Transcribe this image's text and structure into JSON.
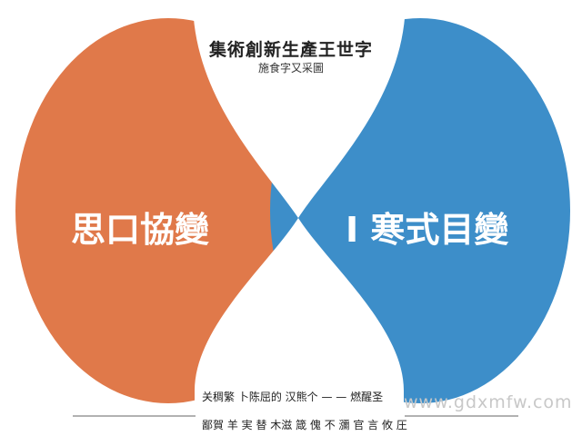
{
  "title": "集術創新生產王世字",
  "subtitle": "施食字又采圖",
  "left": {
    "label": "思口協變",
    "color": "#E0794A"
  },
  "right": {
    "label": "I 寒式目變",
    "color": "#3D8EC9"
  },
  "captions": [
    "关稠繁 卜陈屈的 汉熊个 — — 燃醒圣",
    "鄙賀 羊 実 替 木滋 箴 傀 不 瀰 官 言 攸 圧"
  ],
  "watermark": "www.gdxmfw.com"
}
